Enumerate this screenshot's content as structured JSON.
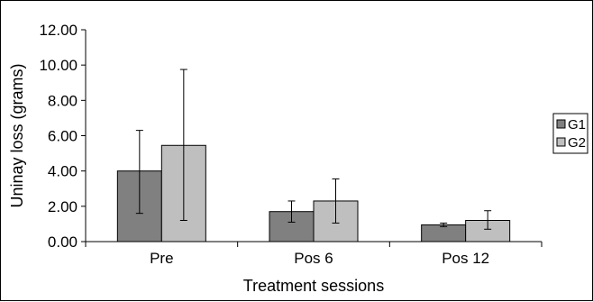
{
  "chart_data": {
    "type": "bar",
    "title": "",
    "xlabel": "Treatment sessions",
    "ylabel": "Uninay loss (grams)",
    "ylim": [
      0,
      12
    ],
    "yticks": [
      "0.00",
      "2.00",
      "4.00",
      "6.00",
      "8.00",
      "10.00",
      "12.00"
    ],
    "categories": [
      "Pre",
      "Pos 6",
      "Pos 12"
    ],
    "series": [
      {
        "name": "G1",
        "color": "#808080",
        "values": [
          4.0,
          1.7,
          0.95
        ],
        "err_low": [
          1.6,
          1.1,
          0.85
        ],
        "err_high": [
          6.3,
          2.3,
          1.05
        ]
      },
      {
        "name": "G2",
        "color": "#bfbfbf",
        "values": [
          5.45,
          2.3,
          1.2
        ],
        "err_low": [
          1.2,
          1.05,
          0.7
        ],
        "err_high": [
          9.75,
          3.55,
          1.75
        ]
      }
    ],
    "legend_position": "right",
    "grid": false
  }
}
